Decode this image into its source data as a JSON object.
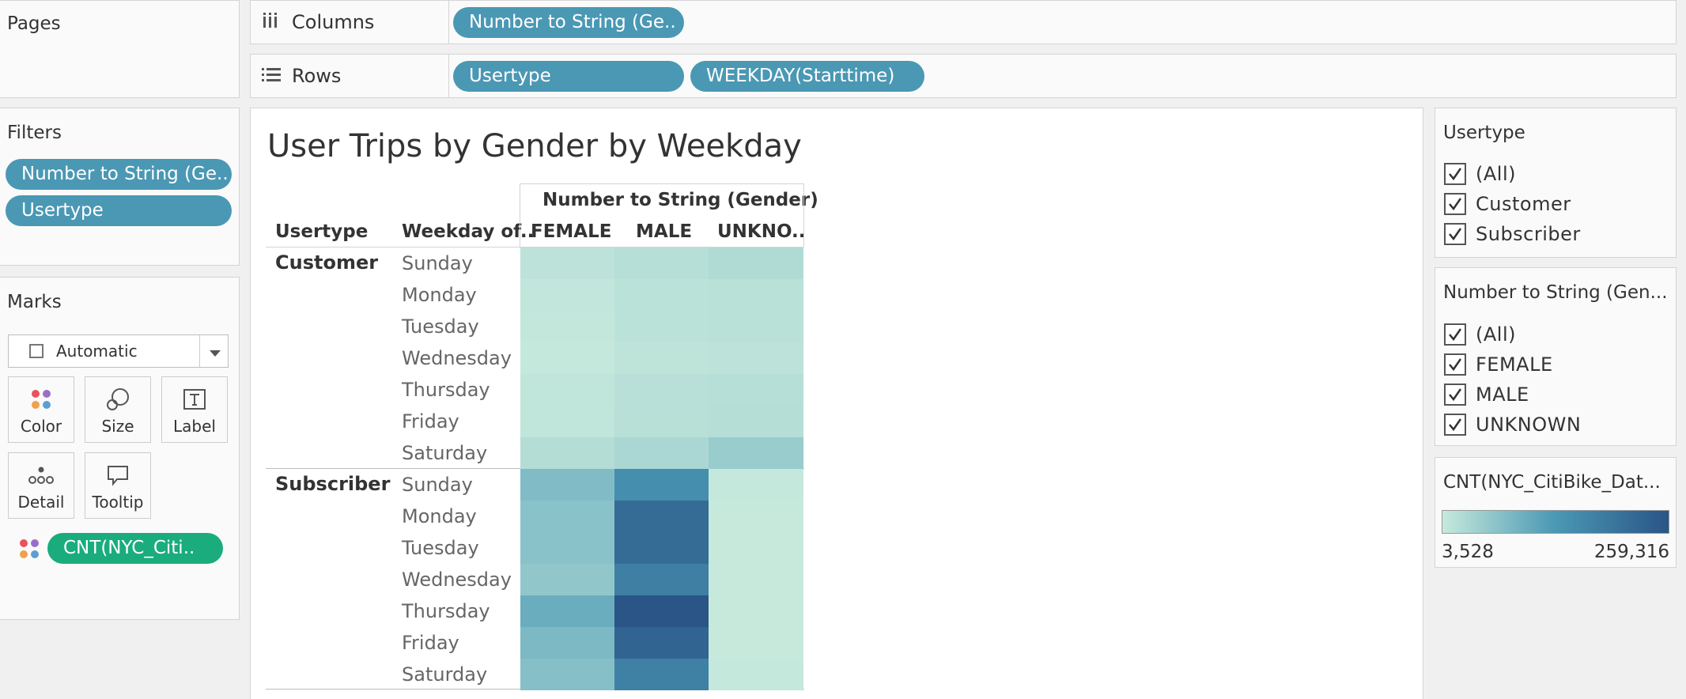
{
  "pages": {
    "title": "Pages"
  },
  "columns_shelf": {
    "label": "Columns",
    "pills": [
      "Number to String (Ge.."
    ]
  },
  "rows_shelf": {
    "label": "Rows",
    "pills": [
      "Usertype",
      "WEEKDAY(Starttime)"
    ]
  },
  "filters": {
    "title": "Filters",
    "pills": [
      "Number to String (Ge..",
      "Usertype"
    ]
  },
  "marks": {
    "title": "Marks",
    "mark_type": "Automatic",
    "buttons": [
      "Color",
      "Size",
      "Label",
      "Detail",
      "Tooltip"
    ],
    "color_pill": "CNT(NYC_Citi.."
  },
  "view": {
    "title": "User Trips by Gender by Weekday",
    "column_header": "Number to String (Gender)",
    "row_header_1": "Usertype",
    "row_header_2": "Weekday of..",
    "columns": [
      "FEMALE",
      "MALE",
      "UNKNO.."
    ],
    "groups": [
      "Customer",
      "Subscriber"
    ],
    "days": [
      "Sunday",
      "Monday",
      "Tuesday",
      "Wednesday",
      "Thursday",
      "Friday",
      "Saturday"
    ]
  },
  "usertype_filter": {
    "title": "Usertype",
    "options": [
      "(All)",
      "Customer",
      "Subscriber"
    ]
  },
  "gender_filter": {
    "title": "Number to String (Gen...",
    "options": [
      "(All)",
      "FEMALE",
      "MALE",
      "UNKNOWN"
    ]
  },
  "color_legend": {
    "title": "CNT(NYC_CitiBike_Dat...",
    "min_label": "3,528",
    "max_label": "259,316",
    "min": 3528,
    "max": 259316,
    "low_color": "#c6e9dc",
    "high_color": "#2a5586"
  },
  "colors": {
    "pill_blue": "#4a98b4",
    "pill_green": "#1aac7c"
  },
  "chart_data": {
    "type": "heatmap",
    "title": "User Trips by Gender by Weekday",
    "x": [
      "FEMALE",
      "MALE",
      "UNKNO.."
    ],
    "y": [
      "Customer / Sunday",
      "Customer / Monday",
      "Customer / Tuesday",
      "Customer / Wednesday",
      "Customer / Thursday",
      "Customer / Friday",
      "Customer / Saturday",
      "Subscriber / Sunday",
      "Subscriber / Monday",
      "Subscriber / Tuesday",
      "Subscriber / Wednesday",
      "Subscriber / Thursday",
      "Subscriber / Friday",
      "Subscriber / Saturday"
    ],
    "values": [
      [
        14000,
        20000,
        26000
      ],
      [
        8000,
        15000,
        16000
      ],
      [
        7000,
        15000,
        16000
      ],
      [
        5000,
        12000,
        14000
      ],
      [
        10000,
        17000,
        20000
      ],
      [
        10000,
        18000,
        21000
      ],
      [
        22000,
        32000,
        50000
      ],
      [
        75000,
        150000,
        5000
      ],
      [
        65000,
        215000,
        4000
      ],
      [
        65000,
        215000,
        4000
      ],
      [
        58000,
        180000,
        4000
      ],
      [
        98000,
        259316,
        3528
      ],
      [
        80000,
        230000,
        3600
      ],
      [
        70000,
        175000,
        4500
      ]
    ],
    "color_range": [
      3528,
      259316
    ]
  }
}
